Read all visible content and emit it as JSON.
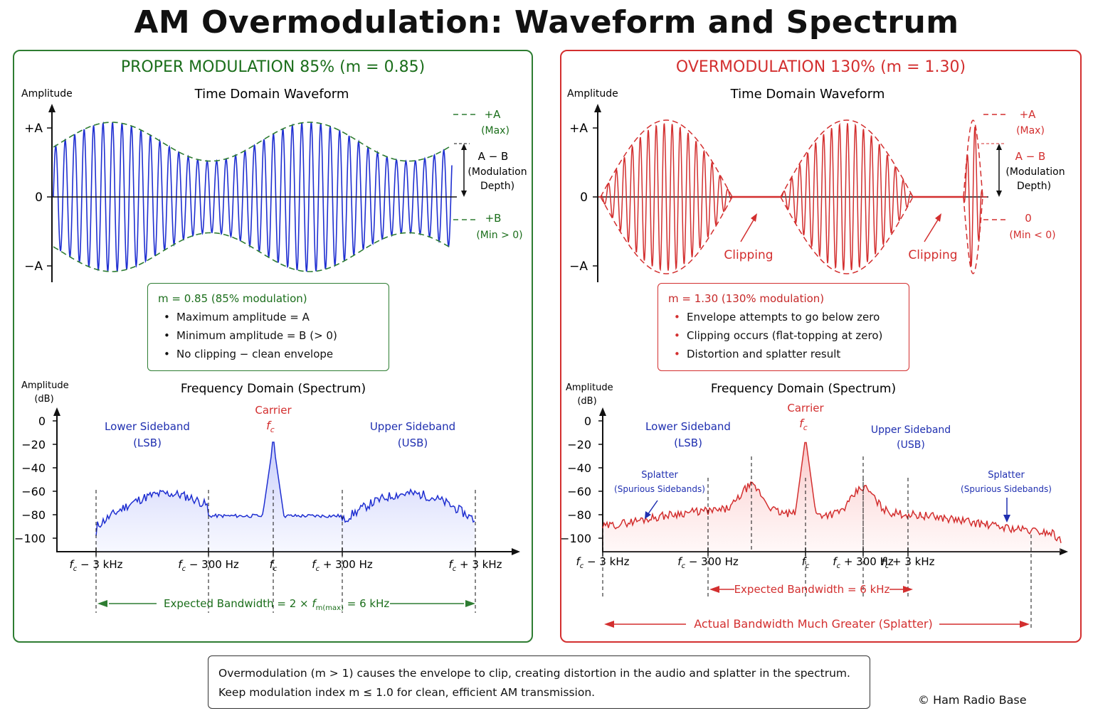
{
  "title": "AM Overmodulation: Waveform and Spectrum",
  "proper": {
    "panel_title": "PROPER MODULATION 85%  (m = 0.85)",
    "time_title": "Time Domain Waveform",
    "amp_label": "Amplitude",
    "y_ticks": [
      "+A",
      "0",
      "−A"
    ],
    "ann_max": "+A",
    "ann_max_sub": "(Max)",
    "ann_depth": "A − B",
    "ann_depth_sub1": "(Modulation",
    "ann_depth_sub2": "Depth)",
    "ann_min": "+B",
    "ann_min_sub": "(Min > 0)",
    "info_head": "m = 0.85  (85% modulation)",
    "info_items": [
      "Maximum amplitude = A",
      "Minimum amplitude = B (> 0)",
      "No clipping − clean envelope"
    ],
    "freq_title": "Frequency Domain (Spectrum)",
    "amp_db_label": "Amplitude",
    "amp_db_unit": "(dB)",
    "db_ticks": [
      "0",
      "−20",
      "−40",
      "−60",
      "−80",
      "−100"
    ],
    "lsb_label": "Lower Sideband",
    "lsb_abbr": "(LSB)",
    "usb_label": "Upper Sideband",
    "usb_abbr": "(USB)",
    "carrier_label": "Carrier",
    "x_ticks": [
      "− 3 kHz",
      "− 300 Hz",
      "",
      "+ 300 Hz",
      "+ 3 kHz"
    ],
    "bw_label_pre": "Expected Bandwidth = 2 × ",
    "bw_label_sub": "m(max)",
    "bw_label_post": " = 6 kHz"
  },
  "over": {
    "panel_title": "OVERMODULATION 130%  (m = 1.30)",
    "time_title": "Time Domain Waveform",
    "amp_label": "Amplitude",
    "y_ticks": [
      "+A",
      "0",
      "−A"
    ],
    "ann_max": "+A",
    "ann_max_sub": "(Max)",
    "ann_depth": "A − B",
    "ann_depth_sub1": "(Modulation",
    "ann_depth_sub2": "Depth)",
    "ann_min": "0",
    "ann_min_sub": "(Min < 0)",
    "clipping_label": "Clipping",
    "info_head": "m = 1.30  (130% modulation)",
    "info_items": [
      "Envelope attempts to go below zero",
      "Clipping occurs (flat-topping at zero)",
      "Distortion and splatter result"
    ],
    "freq_title": "Frequency Domain (Spectrum)",
    "amp_db_label": "Amplitude",
    "amp_db_unit": "(dB)",
    "db_ticks": [
      "0",
      "−20",
      "−40",
      "−60",
      "−80",
      "−100"
    ],
    "lsb_label": "Lower Sideband",
    "lsb_abbr": "(LSB)",
    "usb_label": "Upper Sideband",
    "usb_abbr": "(USB)",
    "carrier_label": "Carrier",
    "splatter_label": "Splatter",
    "splatter_sub": "(Spurious Sidebands)",
    "x_ticks": [
      "− 3 kHz",
      "− 300 Hz",
      "",
      "+ 300 Hz",
      "+ 3 kHz"
    ],
    "expected_bw": "Expected Bandwidth = 6 kHz",
    "actual_bw": "Actual Bandwidth Much Greater (Splatter)"
  },
  "footer": {
    "line1": "Overmodulation (m > 1) causes the envelope to clip, creating distortion in the audio and splatter in the spectrum.",
    "line2": "Keep modulation index m ≤ 1.0 for clean, efficient AM transmission."
  },
  "copyright": "© Ham Radio Base",
  "colors": {
    "proper_accent": "#2e7d32",
    "proper_wave": "#1f2fd1",
    "over_accent": "#d32f2f",
    "over_wave": "#d32f2f",
    "sideband_text": "#1f2fb0"
  }
}
